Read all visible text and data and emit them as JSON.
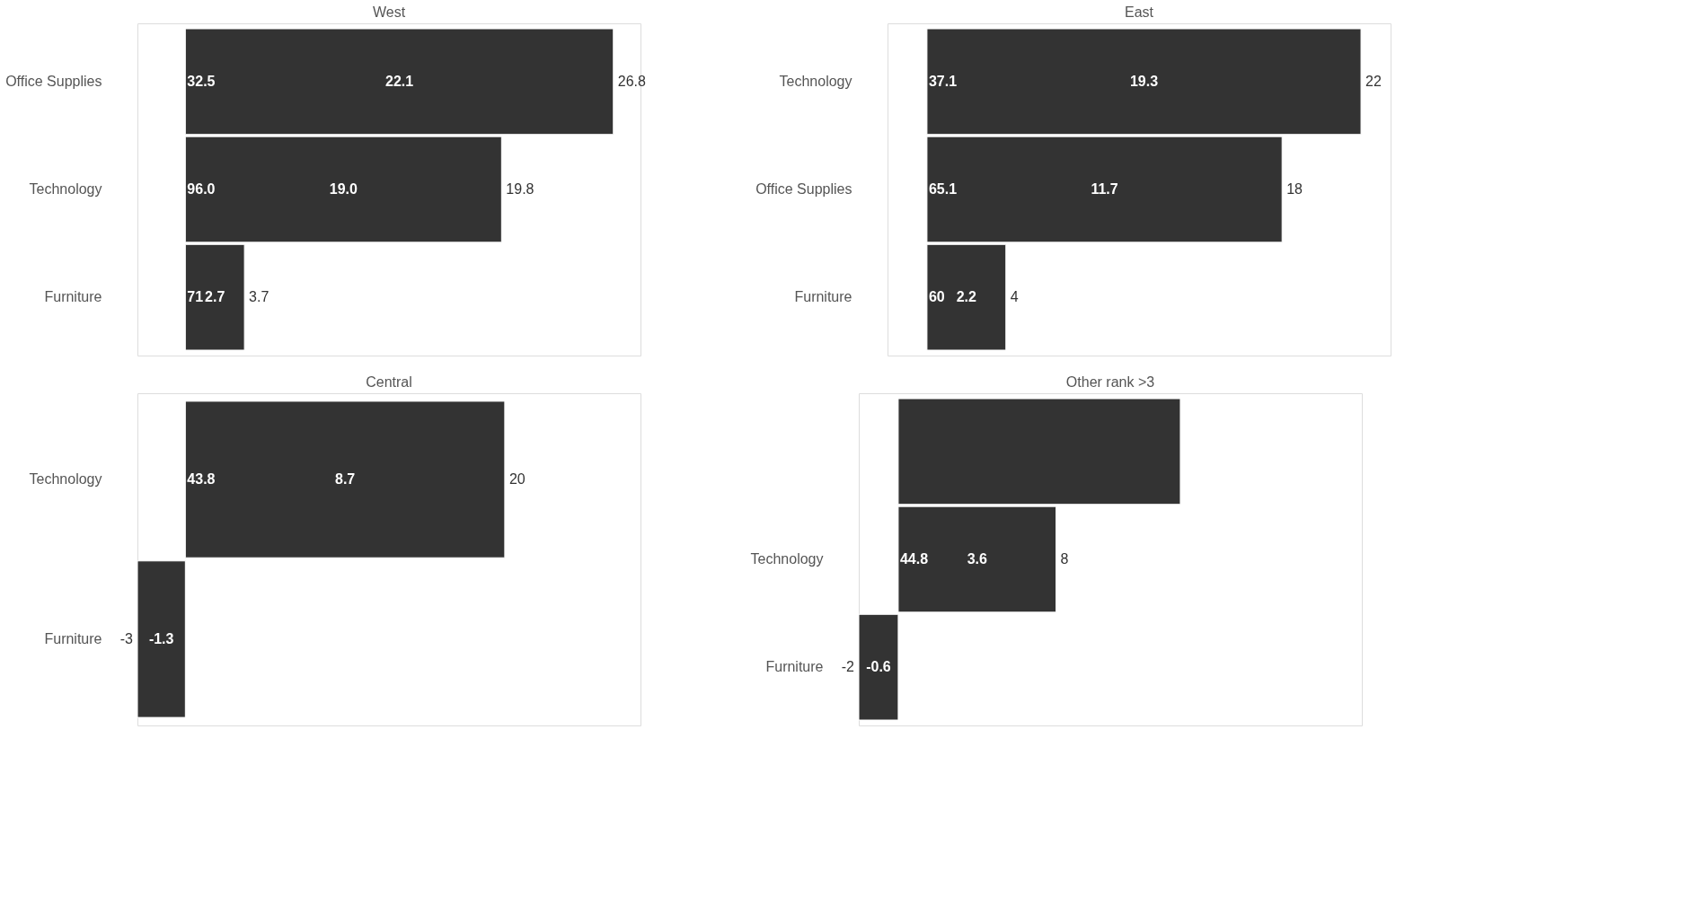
{
  "chart_data": [
    {
      "type": "bar",
      "orientation": "horizontal",
      "title": "West",
      "categories": [
        "Office Supplies",
        "Technology",
        "Furniture"
      ],
      "values": [
        26.8,
        19.8,
        3.7
      ],
      "value_labels": [
        "26.8",
        "19.8",
        "3.7"
      ],
      "color": "#333333",
      "xlim": [
        -3,
        28.5
      ],
      "grid": false,
      "tick_labels": "y",
      "annotations": [
        "32.5",
        "22.1",
        "96.0",
        "19.0",
        "71",
        "2.7"
      ]
    },
    {
      "type": "bar",
      "orientation": "horizontal",
      "title": "East",
      "categories": [
        "Technology",
        "Office Supplies",
        "Furniture"
      ],
      "values": [
        22,
        18,
        4
      ],
      "value_labels": [
        "22",
        "18",
        "4"
      ],
      "color": "#333333",
      "xlim": [
        -2,
        23.5
      ],
      "grid": false,
      "tick_labels": "y",
      "annotations": [
        "37.1",
        "19.3",
        "65.1",
        "11.7",
        "60",
        "2.2"
      ]
    },
    {
      "type": "bar",
      "orientation": "horizontal",
      "title": "Central",
      "categories": [
        "Technology",
        "Furniture"
      ],
      "values": [
        20,
        -3
      ],
      "value_labels": [
        "20",
        "-3"
      ],
      "color": "#333333",
      "xlim": [
        -3,
        28.5
      ],
      "grid": false,
      "tick_labels": "y",
      "annotations": [
        "43.8",
        "8.7",
        "-1.3"
      ]
    },
    {
      "type": "bar",
      "orientation": "horizontal",
      "title": "Other rank >3",
      "categories": [
        null,
        "Technology",
        "Furniture"
      ],
      "values": [
        14.3,
        8,
        -2
      ],
      "value_labels": [
        null,
        "8",
        "-2"
      ],
      "color": "#333333",
      "xlim": [
        -2,
        23.5
      ],
      "grid": false,
      "tick_labels": "y",
      "annotations": [
        "44.8",
        "3.6",
        "-0.6"
      ]
    }
  ]
}
